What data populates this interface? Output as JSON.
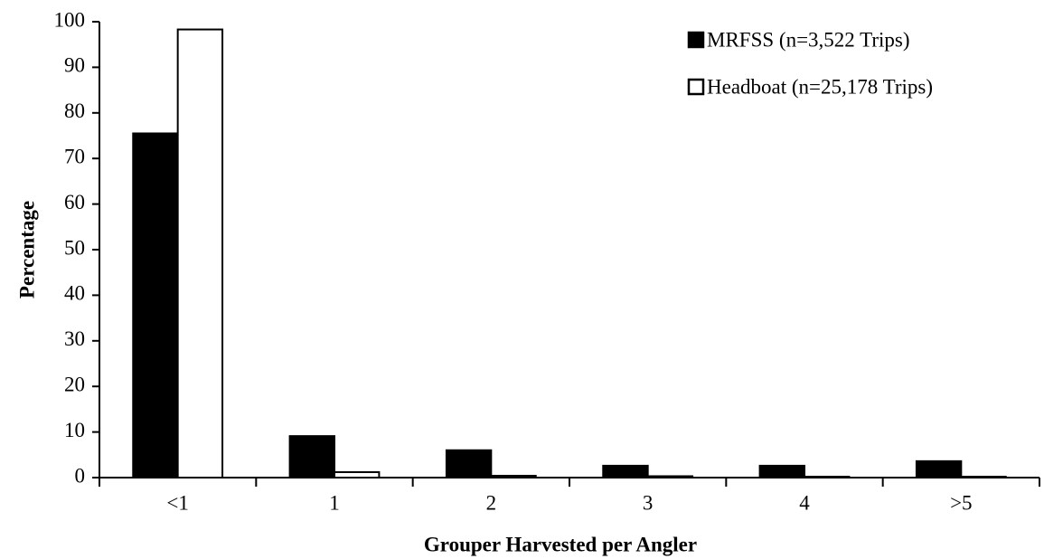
{
  "chart_data": {
    "type": "bar",
    "categories": [
      "<1",
      "1",
      "2",
      "3",
      "4",
      ">5"
    ],
    "series": [
      {
        "name": "MRFSS (n=3,522 Trips)",
        "color": "#000000",
        "values": [
          75.5,
          9.1,
          6.0,
          2.6,
          2.6,
          3.6
        ]
      },
      {
        "name": "Headboat (n=25,178 Trips)",
        "color": "#ffffff",
        "values": [
          98.3,
          1.2,
          0.4,
          0.3,
          0.2,
          0.2
        ]
      }
    ],
    "xlabel": "Grouper Harvested per Angler",
    "ylabel": "Percentage",
    "ylim": [
      0,
      100
    ],
    "yticks": [
      0,
      10,
      20,
      30,
      40,
      50,
      60,
      70,
      80,
      90,
      100
    ],
    "grid": false,
    "legend": "upper right"
  }
}
